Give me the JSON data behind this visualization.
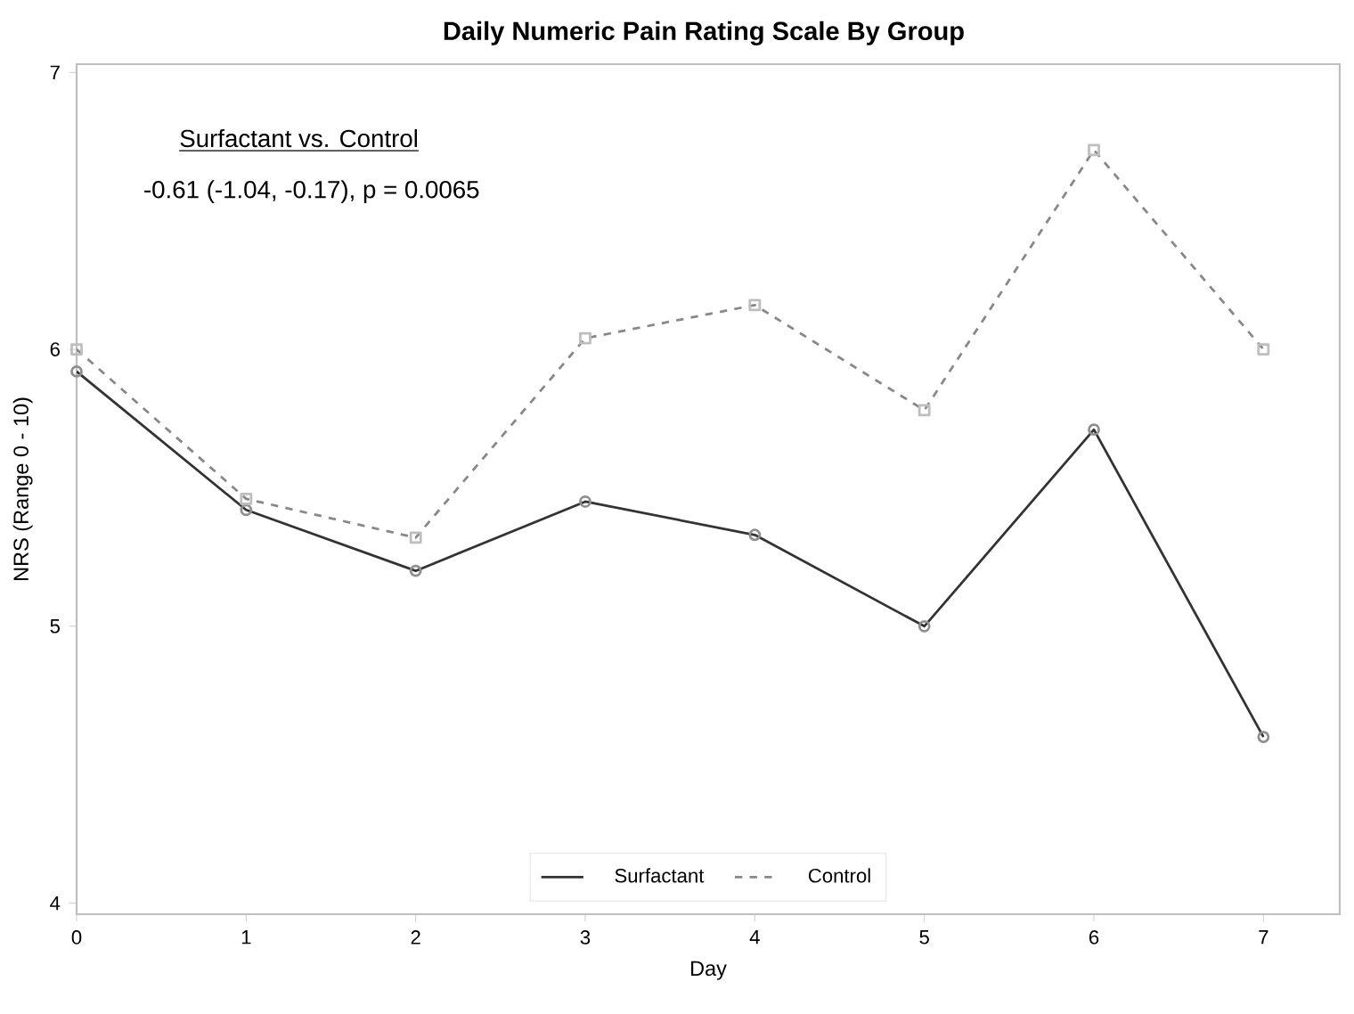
{
  "chart_data": {
    "type": "line",
    "title": "Daily Numeric Pain Rating Scale By Group",
    "xlabel": "Day",
    "ylabel": "NRS (Range 0 - 10)",
    "x": [
      0,
      1,
      2,
      3,
      4,
      5,
      6,
      7
    ],
    "series": [
      {
        "name": "Surfactant",
        "color": "#333333",
        "marker": "circle",
        "line_style": "solid",
        "values": [
          5.92,
          5.42,
          5.2,
          5.45,
          5.33,
          5.0,
          5.71,
          4.6
        ]
      },
      {
        "name": "Control",
        "color": "#888888",
        "marker": "square",
        "line_style": "dashed",
        "values": [
          6.0,
          5.46,
          5.32,
          6.04,
          6.16,
          5.78,
          6.72,
          6.0
        ]
      }
    ],
    "xlim": [
      0,
      7.45
    ],
    "ylim": [
      3.96,
      7.03
    ],
    "xticks": [
      0,
      1,
      2,
      3,
      4,
      5,
      6,
      7
    ],
    "yticks": [
      4,
      5,
      6,
      7
    ],
    "grid": false,
    "legend": "bottom",
    "annotations": [
      "Surfactant vs. Control",
      "-0.61 (-1.04, -0.17), p = 0.0065"
    ]
  }
}
